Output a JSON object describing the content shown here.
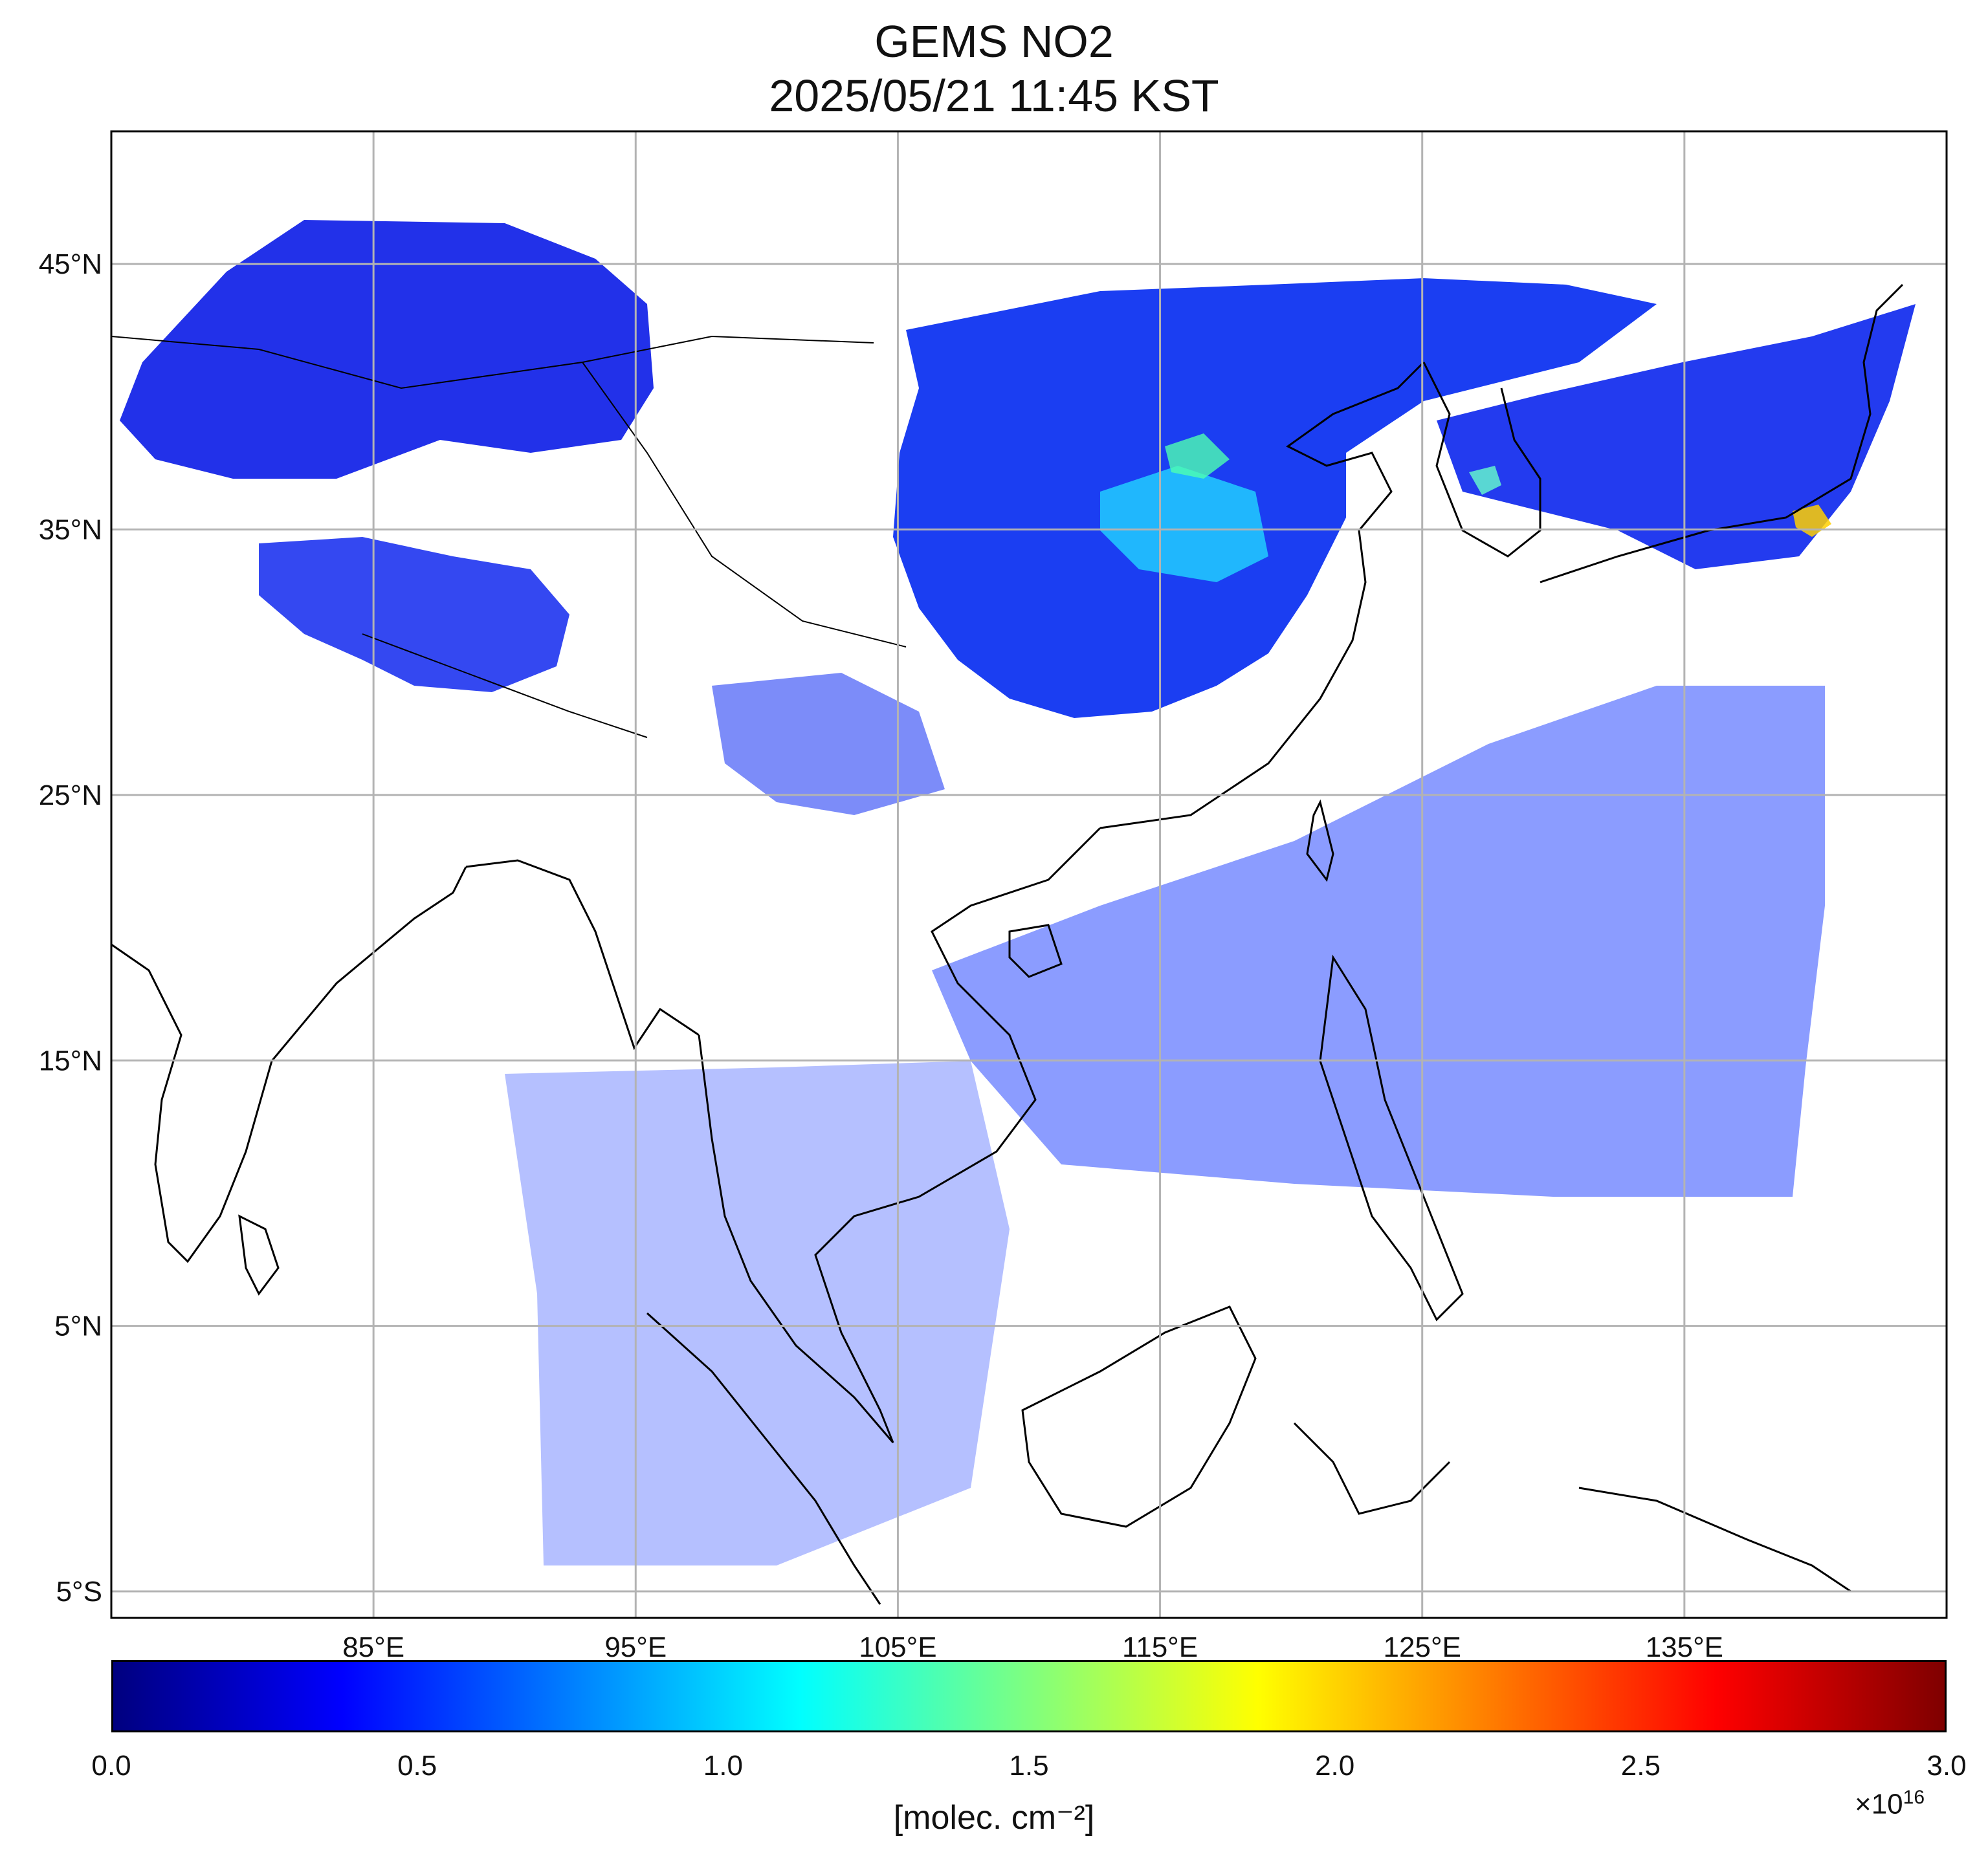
{
  "title": {
    "line1": "GEMS NO2",
    "line2": "2025/05/21 11:45 KST"
  },
  "map": {
    "projection": "PlateCarree",
    "extent": {
      "lon": [
        75,
        145
      ],
      "lat": [
        -6,
        50
      ]
    },
    "gridlines": true,
    "lat_ticks": [
      {
        "value": 45,
        "label": "45°N"
      },
      {
        "value": 35,
        "label": "35°N"
      },
      {
        "value": 25,
        "label": "25°N"
      },
      {
        "value": 15,
        "label": "15°N"
      },
      {
        "value": 5,
        "label": "5°N"
      },
      {
        "value": -5,
        "label": "5°S"
      }
    ],
    "lon_ticks": [
      {
        "value": 85,
        "label": "85°E"
      },
      {
        "value": 95,
        "label": "95°E"
      },
      {
        "value": 105,
        "label": "105°E"
      },
      {
        "value": 115,
        "label": "115°E"
      },
      {
        "value": 125,
        "label": "125°E"
      },
      {
        "value": 135,
        "label": "135°E"
      }
    ],
    "coastline_color": "#000000",
    "grid_color": "#b3b3b3"
  },
  "colorbar": {
    "colormap": "jet",
    "min": 0.0,
    "max": 3.0,
    "ticks": [
      "0.0",
      "0.5",
      "1.0",
      "1.5",
      "2.0",
      "2.5",
      "3.0"
    ],
    "unit_label": "[molec. cm⁻²]",
    "multiplier_base": "×10",
    "multiplier_exp": "16",
    "colors": [
      "#00007f",
      "#0000ff",
      "#007fff",
      "#00ffff",
      "#7fff7f",
      "#ffff00",
      "#ff7f00",
      "#ff0000",
      "#7f0000"
    ]
  },
  "chart_data": {
    "type": "heatmap",
    "variable": "NO2 column",
    "xlabel": "",
    "ylabel": "",
    "xlim": [
      75,
      145
    ],
    "ylim": [
      -6,
      50
    ],
    "value_range": [
      0.0,
      3.0
    ],
    "value_multiplier": 1e+16
  }
}
